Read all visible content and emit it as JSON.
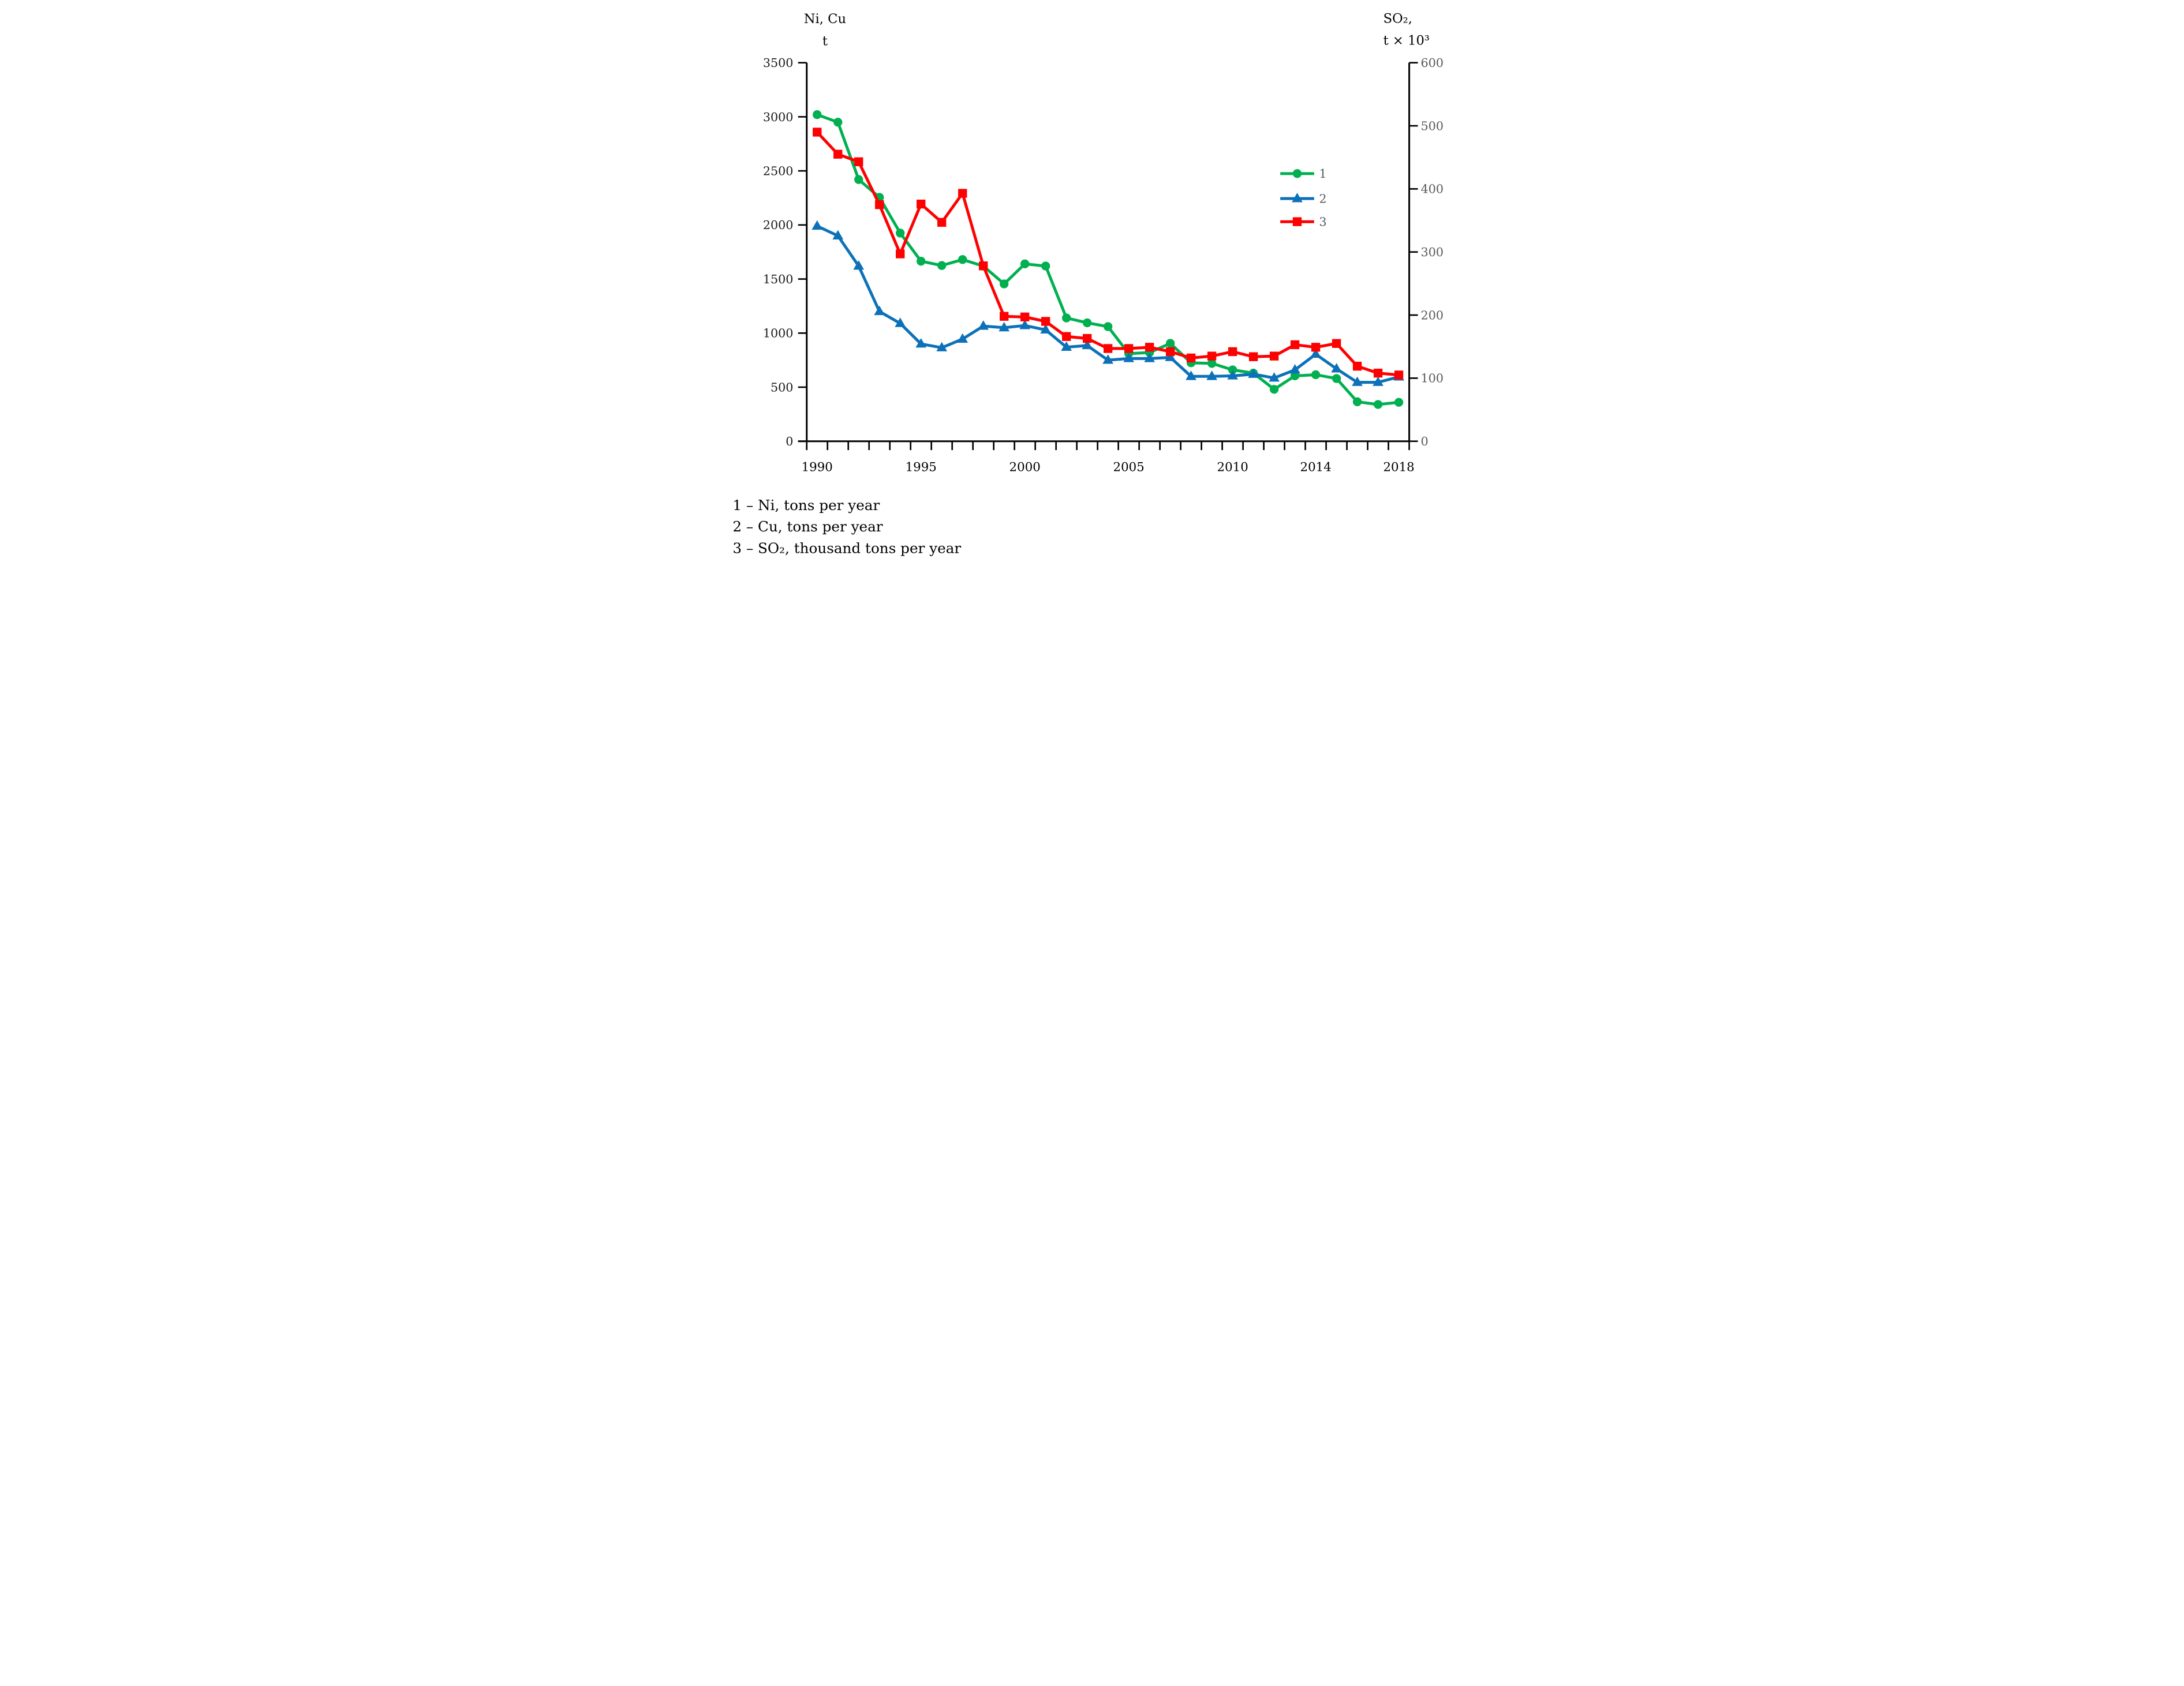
{
  "chart_data": {
    "type": "line",
    "grid": false,
    "legend_position": "middle-right",
    "axis_title_left_line1": "Ni, Cu",
    "axis_title_left_line2": "t",
    "axis_title_right_line1": "SO₂,",
    "axis_title_right_line2": "t × 10³",
    "x": [
      1990,
      1991,
      1992,
      1993,
      1994,
      1995,
      1996,
      1997,
      1998,
      1999,
      2000,
      2001,
      2002,
      2003,
      2004,
      2005,
      2006,
      2007,
      2008,
      2009,
      2010,
      2011,
      2012,
      2013,
      2014,
      2015,
      2016,
      2017,
      2018
    ],
    "x_tick_labels": [
      "1990",
      "1995",
      "2000",
      "2005",
      "2010",
      "2014",
      "2018"
    ],
    "x_tick_years": [
      1990,
      1995,
      2000,
      2005,
      2010,
      2014,
      2018
    ],
    "left_axis": {
      "min": 0,
      "max": 3500,
      "step": 500,
      "tick_values": [
        0,
        500,
        1000,
        1500,
        2000,
        2500,
        3000,
        3500
      ]
    },
    "right_axis": {
      "min": 0,
      "max": 600,
      "step": 100,
      "tick_values": [
        0,
        100,
        200,
        300,
        400,
        500,
        600
      ]
    },
    "series": [
      {
        "id": "ni",
        "legend_label": "1",
        "marker": "circle",
        "color": "#00B050",
        "axis": "left",
        "values": [
          3020,
          2950,
          2420,
          2255,
          1925,
          1665,
          1625,
          1680,
          1620,
          1455,
          1640,
          1620,
          1140,
          1095,
          1060,
          810,
          820,
          905,
          725,
          720,
          660,
          630,
          480,
          605,
          615,
          580,
          365,
          340,
          360
        ]
      },
      {
        "id": "cu",
        "legend_label": "2",
        "marker": "triangle",
        "color": "#0C71B8",
        "axis": "left",
        "values": [
          1990,
          1900,
          1620,
          1200,
          1090,
          900,
          865,
          945,
          1065,
          1050,
          1070,
          1030,
          870,
          885,
          750,
          765,
          765,
          775,
          600,
          600,
          605,
          620,
          585,
          660,
          805,
          670,
          545,
          545,
          595
        ]
      },
      {
        "id": "so2",
        "legend_label": "3",
        "marker": "square",
        "color": "#FF0000",
        "axis": "right",
        "values": [
          490,
          455,
          443,
          375,
          297,
          376,
          347,
          393,
          278,
          198,
          197,
          190,
          166,
          163,
          147,
          147,
          149,
          142,
          132,
          135,
          142,
          134,
          135,
          153,
          149,
          155,
          119,
          108,
          105
        ]
      }
    ]
  },
  "captions": {
    "line1": "1 – Ni, tons per year",
    "line2": "2 – Cu, tons per year",
    "line3": "3 – SO₂, thousand tons per year"
  },
  "colors": {
    "series_ni": "#00B050",
    "series_cu": "#0C71B8",
    "series_so2": "#FF0000",
    "axis": "#000000",
    "left_tick_labels": "#1a1a1a",
    "x_tick_labels": "#000000",
    "right_tick_labels": "#595959",
    "legend_text": "#595959",
    "caption_text": "#000000"
  }
}
